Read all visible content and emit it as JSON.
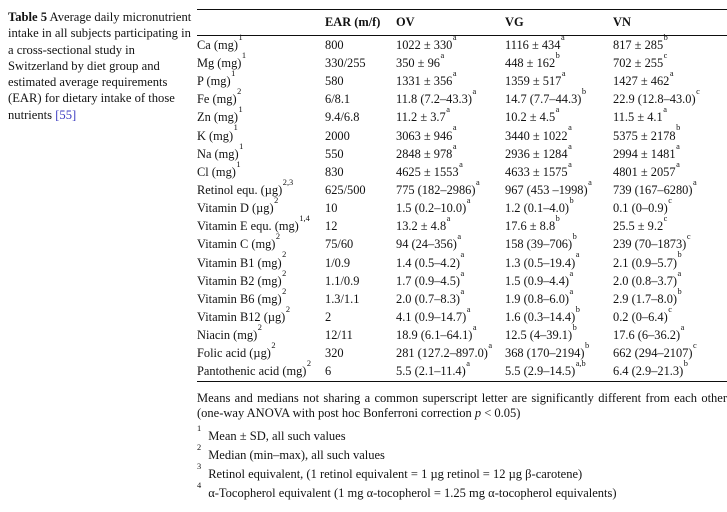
{
  "caption": {
    "label": "Table 5",
    "text": " Average daily micronutrient intake in all subjects participating in a cross-sectional study in Switzerland by diet group and estimated average requirements (EAR) for dietary intake of those nutrients",
    "citation": "[55]",
    "citation_color": "#3a3ac0"
  },
  "table": {
    "columns": [
      "",
      "EAR (m/f)",
      "OV",
      "VG",
      "VN"
    ],
    "rows": [
      {
        "label": "Ca (mg)",
        "sup": "1",
        "ear": "800",
        "ov": {
          "v": "1022 ± 330",
          "s": "a"
        },
        "vg": {
          "v": "1116 ± 434",
          "s": "a"
        },
        "vn": {
          "v": "817 ± 285",
          "s": "b"
        }
      },
      {
        "label": "Mg (mg)",
        "sup": "1",
        "ear": "330/255",
        "ov": {
          "v": "350 ± 96",
          "s": "a"
        },
        "vg": {
          "v": "448 ± 162",
          "s": "b"
        },
        "vn": {
          "v": "702 ± 255",
          "s": "c"
        }
      },
      {
        "label": "P (mg)",
        "sup": "1",
        "ear": "580",
        "ov": {
          "v": "1331 ± 356",
          "s": "a"
        },
        "vg": {
          "v": "1359 ± 517",
          "s": "a"
        },
        "vn": {
          "v": "1427 ± 462",
          "s": "a"
        }
      },
      {
        "label": "Fe (mg)",
        "sup": "2",
        "ear": "6/8.1",
        "ov": {
          "v": "11.8 (7.2–43.3)",
          "s": "a"
        },
        "vg": {
          "v": "14.7 (7.7–44.3)",
          "s": "b"
        },
        "vn": {
          "v": "22.9 (12.8–43.0)",
          "s": "c"
        }
      },
      {
        "label": "Zn (mg)",
        "sup": "1",
        "ear": "9.4/6.8",
        "ov": {
          "v": "11.2 ± 3.7",
          "s": "a"
        },
        "vg": {
          "v": "10.2 ± 4.5",
          "s": "a"
        },
        "vn": {
          "v": "11.5 ± 4.1",
          "s": "a"
        }
      },
      {
        "label": "K (mg)",
        "sup": "1",
        "ear": "2000",
        "ov": {
          "v": "3063 ± 946",
          "s": "a"
        },
        "vg": {
          "v": "3440 ± 1022",
          "s": "a"
        },
        "vn": {
          "v": "5375 ± 2178",
          "s": "b"
        }
      },
      {
        "label": "Na (mg)",
        "sup": "1",
        "ear": "550",
        "ov": {
          "v": "2848 ± 978",
          "s": "a"
        },
        "vg": {
          "v": "2936 ± 1284",
          "s": "a"
        },
        "vn": {
          "v": "2994 ± 1481",
          "s": "a"
        }
      },
      {
        "label": "Cl (mg)",
        "sup": "1",
        "ear": "830",
        "ov": {
          "v": "4625 ± 1553",
          "s": "a"
        },
        "vg": {
          "v": "4633 ± 1575",
          "s": "a"
        },
        "vn": {
          "v": "4801 ± 2057",
          "s": "a"
        }
      },
      {
        "label": "Retinol equ. (µg)",
        "sup": "2,3",
        "ear": "625/500",
        "ov": {
          "v": "775 (182–2986)",
          "s": "a"
        },
        "vg": {
          "v": "967 (453 –1998)",
          "s": "a"
        },
        "vn": {
          "v": "739 (167–6280)",
          "s": "a"
        }
      },
      {
        "label": "Vitamin D (µg)",
        "sup": "2",
        "ear": "10",
        "ov": {
          "v": "1.5 (0.2–10.0)",
          "s": "a"
        },
        "vg": {
          "v": "1.2 (0.1–4.0)",
          "s": "b"
        },
        "vn": {
          "v": "0.1 (0–0.9)",
          "s": "c"
        }
      },
      {
        "label": "Vitamin E equ. (mg)",
        "sup": "1,4",
        "ear": "12",
        "ov": {
          "v": "13.2 ± 4.8",
          "s": "a"
        },
        "vg": {
          "v": "17.6 ± 8.8",
          "s": "b"
        },
        "vn": {
          "v": "25.5 ± 9.2",
          "s": "c"
        }
      },
      {
        "label": "Vitamin C (mg)",
        "sup": "2",
        "ear": "75/60",
        "ov": {
          "v": "94 (24–356)",
          "s": "a"
        },
        "vg": {
          "v": "158 (39–706)",
          "s": "b"
        },
        "vn": {
          "v": "239 (70–1873)",
          "s": "c"
        }
      },
      {
        "label": "Vitamin B1 (mg)",
        "sup": "2",
        "ear": "1/0.9",
        "ov": {
          "v": "1.4 (0.5–4.2)",
          "s": "a"
        },
        "vg": {
          "v": "1.3 (0.5–19.4)",
          "s": "a"
        },
        "vn": {
          "v": "2.1 (0.9–5.7)",
          "s": "b"
        }
      },
      {
        "label": "Vitamin B2 (mg)",
        "sup": "2",
        "ear": "1.1/0.9",
        "ov": {
          "v": "1.7 (0.9–4.5)",
          "s": "a"
        },
        "vg": {
          "v": "1.5 (0.9–4.4)",
          "s": "a"
        },
        "vn": {
          "v": "2.0 (0.8–3.7)",
          "s": "a"
        }
      },
      {
        "label": "Vitamin B6 (mg)",
        "sup": "2",
        "ear": "1.3/1.1",
        "ov": {
          "v": "2.0 (0.7–8.3)",
          "s": "a"
        },
        "vg": {
          "v": "1.9 (0.8–6.0)",
          "s": "a"
        },
        "vn": {
          "v": "2.9 (1.7–8.0)",
          "s": "b"
        }
      },
      {
        "label": "Vitamin B12 (µg)",
        "sup": "2",
        "ear": "2",
        "ov": {
          "v": "4.1 (0.9–14.7)",
          "s": "a"
        },
        "vg": {
          "v": "1.6 (0.3–14.4)",
          "s": "b"
        },
        "vn": {
          "v": "0.2 (0–6.4)",
          "s": "c"
        }
      },
      {
        "label": "Niacin (mg)",
        "sup": "2",
        "ear": "12/11",
        "ov": {
          "v": "18.9 (6.1–64.1)",
          "s": "a"
        },
        "vg": {
          "v": "12.5 (4–39.1)",
          "s": "b"
        },
        "vn": {
          "v": "17.6 (6–36.2)",
          "s": "a"
        }
      },
      {
        "label": "Folic acid (µg)",
        "sup": "2",
        "ear": "320",
        "ov": {
          "v": "281 (127.2–897.0)",
          "s": "a"
        },
        "vg": {
          "v": "368 (170–2194)",
          "s": "b"
        },
        "vn": {
          "v": "662 (294–2107)",
          "s": "c"
        }
      },
      {
        "label": "Pantothenic acid (mg)",
        "sup": "2",
        "ear": "6",
        "ov": {
          "v": "5.5 (2.1–11.4)",
          "s": "a"
        },
        "vg": {
          "v": "5.5 (2.9–14.5)",
          "s": "a,b"
        },
        "vn": {
          "v": "6.4 (2.9–21.3)",
          "s": "b"
        }
      }
    ]
  },
  "footnotes": {
    "note_pre": "Means and medians not sharing a common superscript letter are significantly different from each other (one-way ANOVA with post hoc Bonferroni correction ",
    "note_p": "p",
    "note_post": " < 0.05)",
    "items": [
      {
        "marker": "1",
        "text": "Mean ± SD, all such values"
      },
      {
        "marker": "2",
        "text": "Median (min–max), all such values"
      },
      {
        "marker": "3",
        "text": "Retinol equivalent, (1 retinol equivalent = 1 µg retinol = 12 µg β-carotene)"
      },
      {
        "marker": "4",
        "text": "α-Tocopherol equivalent (1 mg α-tocopherol = 1.25 mg α-tocopherol equivalents)"
      }
    ]
  }
}
